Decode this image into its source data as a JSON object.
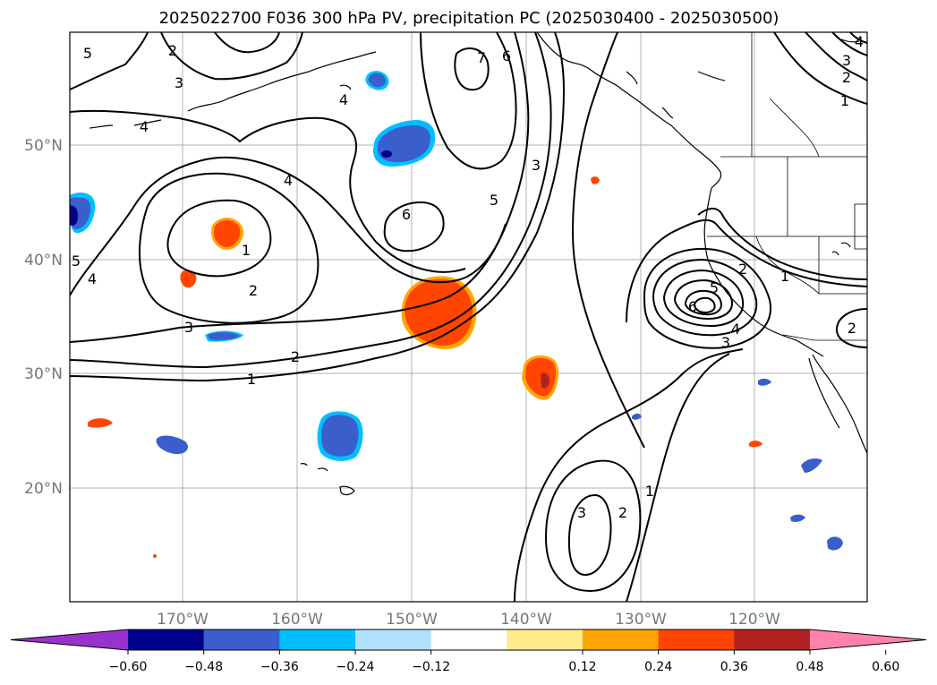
{
  "title": "2025022700 F036 300 hPa PV, precipitation PC (2025030400 - 2025030500)",
  "map": {
    "lon_labels": [
      "170°W",
      "160°W",
      "150°W",
      "140°W",
      "130°W",
      "120°W"
    ],
    "lat_labels": [
      "50°N",
      "40°N",
      "30°N",
      "20°N"
    ]
  },
  "colorbar": {
    "ticks": [
      "−0.60",
      "−0.48",
      "−0.36",
      "−0.24",
      "−0.12",
      "0.12",
      "0.24",
      "0.36",
      "0.48",
      "0.60"
    ],
    "colors": [
      "#9932cc",
      "#00008b",
      "#3a5fcd",
      "#00bfff",
      "#b0e2ff",
      "#ffffff",
      "#ffec8b",
      "#ffa500",
      "#ff4500",
      "#b22222",
      "#ff82ab"
    ]
  },
  "contour_labels": {
    "c1": "1",
    "c2": "2",
    "c3": "3",
    "c4": "4",
    "c5": "5",
    "c6": "6",
    "c7": "7"
  },
  "colors": {
    "neg_dark": "#00008b",
    "neg_mid": "#3a5fcd",
    "neg_light": "#00bfff",
    "pos_mid": "#ff4500",
    "pos_dark": "#b22222",
    "pos_light": "#ffa500"
  }
}
